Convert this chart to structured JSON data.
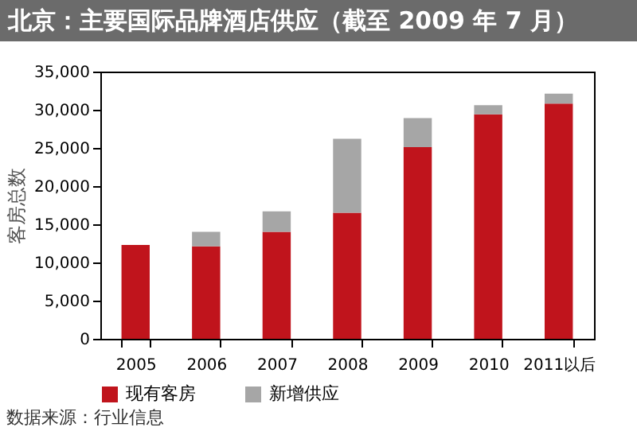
{
  "chart_data": {
    "type": "bar",
    "title": "北京：主要国际品牌酒店供应（截至 2009 年 7 月）",
    "ylabel": "客房总数",
    "categories": [
      "2005",
      "2006",
      "2007",
      "2008",
      "2009",
      "2010",
      "2011以后"
    ],
    "stacked": true,
    "series": [
      {
        "name": "现有客房",
        "color": "#c0141c",
        "values": [
          12300,
          12100,
          14000,
          16500,
          25100,
          29400,
          30800
        ]
      },
      {
        "name": "新增供应",
        "color": "#a6a6a6",
        "values": [
          0,
          1900,
          2700,
          9700,
          3800,
          1200,
          1300
        ]
      }
    ],
    "ylim": [
      0,
      35000
    ],
    "yticks": [
      {
        "value": 0,
        "label": "0"
      },
      {
        "value": 5000,
        "label": "5,000"
      },
      {
        "value": 10000,
        "label": "10,000"
      },
      {
        "value": 15000,
        "label": "15,000"
      },
      {
        "value": 20000,
        "label": "20,000"
      },
      {
        "value": 25000,
        "label": "25,000"
      },
      {
        "value": 30000,
        "label": "30,000"
      },
      {
        "value": 35000,
        "label": "35,000"
      }
    ],
    "grid": false,
    "legend": "bottom",
    "annotations": [
      "数据来源：行业信息"
    ]
  }
}
